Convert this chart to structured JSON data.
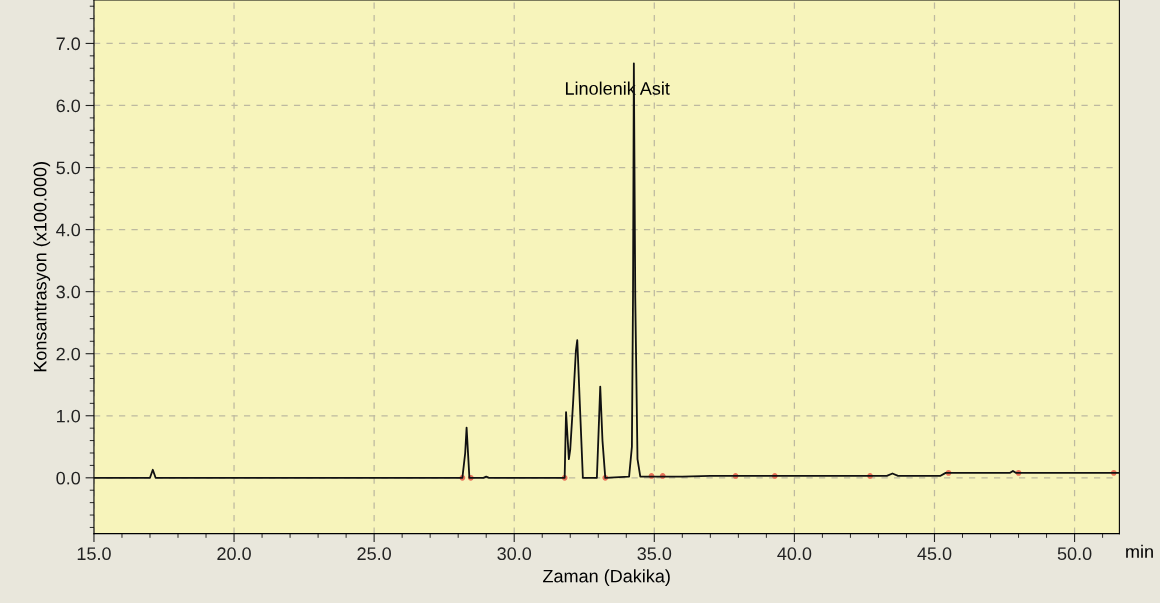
{
  "chart_data": {
    "type": "line",
    "xlabel": "Zaman (Dakika)",
    "ylabel": "Konsantrasyon (x100.000)",
    "xlim": [
      15.0,
      51.6
    ],
    "ylim": [
      -0.9,
      7.7
    ],
    "xticks": [
      {
        "value": 15,
        "label": "15.0"
      },
      {
        "value": 20,
        "label": "20.0"
      },
      {
        "value": 25,
        "label": "25.0"
      },
      {
        "value": 30,
        "label": "30.0"
      },
      {
        "value": 35,
        "label": "35.0"
      },
      {
        "value": 40,
        "label": "40.0"
      },
      {
        "value": 45,
        "label": "45.0"
      },
      {
        "value": 50,
        "label": "50.0"
      }
    ],
    "yticks": [
      {
        "value": 0,
        "label": "0.0"
      },
      {
        "value": 1,
        "label": "1.0"
      },
      {
        "value": 2,
        "label": "2.0"
      },
      {
        "value": 3,
        "label": "3.0"
      },
      {
        "value": 4,
        "label": "4.0"
      },
      {
        "value": 5,
        "label": "5.0"
      },
      {
        "value": 6,
        "label": "6.0"
      },
      {
        "value": 7,
        "label": "7.0"
      }
    ],
    "grid": true,
    "series": [
      {
        "color": "#111111",
        "x": [
          15.0,
          17.0,
          17.1,
          17.2,
          28.15,
          28.25,
          28.3,
          28.4,
          28.9,
          29.0,
          29.1,
          31.8,
          31.85,
          31.95,
          32.0,
          32.1,
          32.2,
          32.25,
          32.35,
          32.45,
          32.95,
          33.0,
          33.07,
          33.15,
          33.25,
          34.1,
          34.2,
          34.24,
          34.27,
          34.32,
          34.4,
          34.5,
          36.0,
          37.0,
          40.0,
          43.3,
          43.5,
          43.7,
          45.2,
          45.4,
          47.7,
          47.8,
          47.9,
          51.6
        ],
        "values": [
          0,
          0,
          0.13,
          0,
          0,
          0.4,
          0.81,
          0,
          0,
          0.02,
          0,
          0,
          1.06,
          0.3,
          0.46,
          1.2,
          2.04,
          2.22,
          1.1,
          0,
          0,
          0.6,
          1.47,
          0.6,
          0,
          0.02,
          0.5,
          2.93,
          6.68,
          2.9,
          0.3,
          0.02,
          0.02,
          0.03,
          0.03,
          0.03,
          0.07,
          0.03,
          0.03,
          0.08,
          0.08,
          0.11,
          0.08,
          0.08
        ]
      },
      {
        "type": "scatter",
        "color": "#e8735a",
        "marker": "circle",
        "x": [
          28.15,
          28.45,
          31.8,
          33.25,
          34.9,
          35.3,
          37.9,
          39.3,
          42.7,
          45.5,
          48.0,
          51.4
        ],
        "values": [
          0,
          0,
          0,
          0,
          0.03,
          0.03,
          0.03,
          0.03,
          0.03,
          0.08,
          0.08,
          0.08
        ]
      }
    ],
    "annotations": [
      {
        "text": "Linolenik Asit",
        "x": 34.27,
        "y": 6.25
      },
      "min"
    ]
  }
}
